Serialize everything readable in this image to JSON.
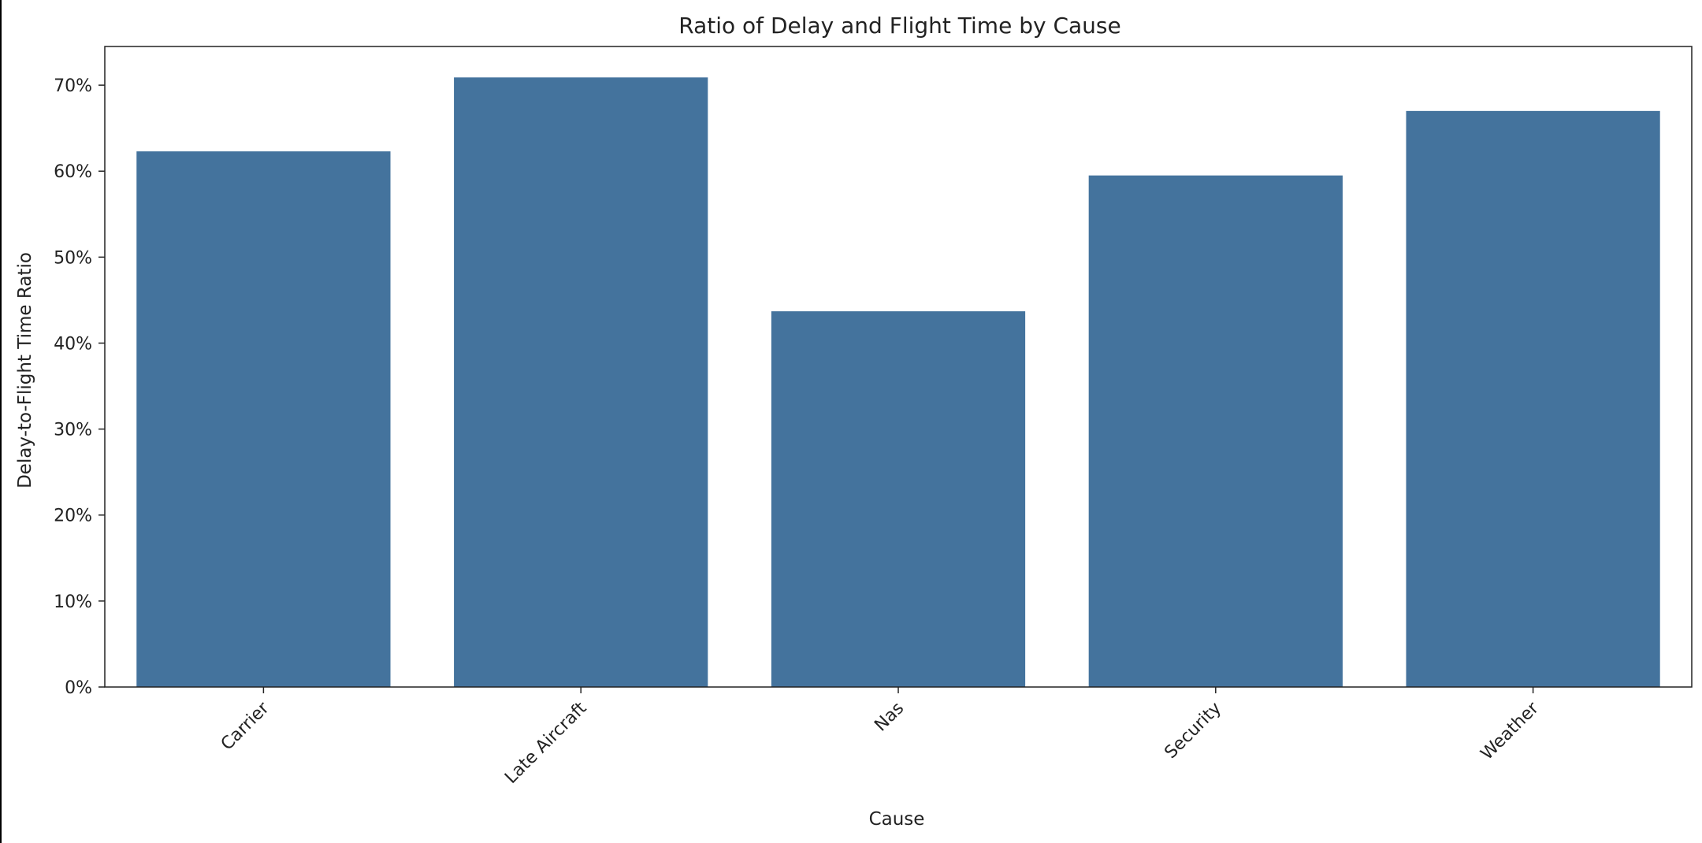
{
  "chart_data": {
    "type": "bar",
    "title": "Ratio of Delay and Flight Time by Cause",
    "xlabel": "Cause",
    "ylabel": "Delay-to-Flight Time Ratio",
    "categories": [
      "Carrier",
      "Late Aircraft",
      "Nas",
      "Security",
      "Weather"
    ],
    "values": [
      0.623,
      0.709,
      0.437,
      0.595,
      0.67
    ],
    "ylim": [
      0,
      0.745
    ],
    "yticks": [
      0,
      0.1,
      0.2,
      0.3,
      0.4,
      0.5,
      0.6,
      0.7
    ],
    "ytick_labels": [
      "0%",
      "10%",
      "20%",
      "30%",
      "40%",
      "50%",
      "60%",
      "70%"
    ],
    "bar_color": "#44739d",
    "grid": false,
    "legend": "none"
  }
}
